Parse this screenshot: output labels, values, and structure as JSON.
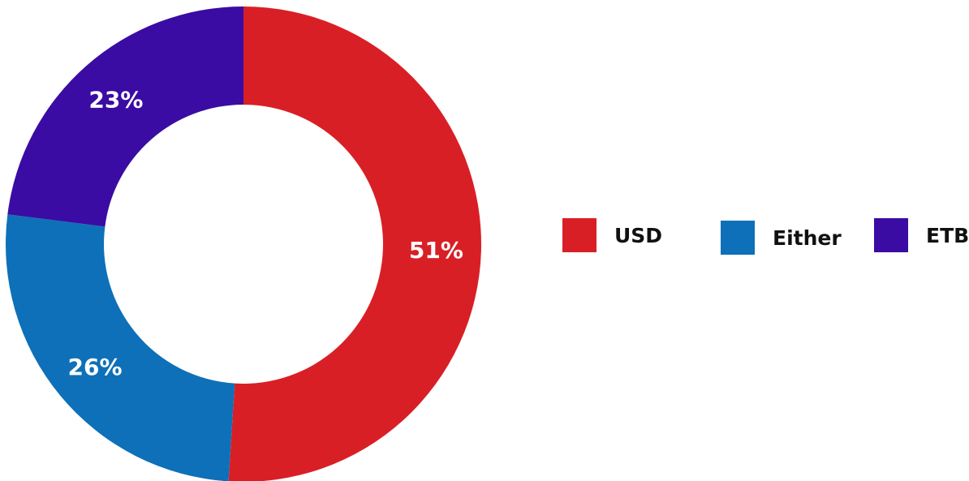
{
  "chart_data": {
    "type": "pie",
    "style": "donut",
    "slices": [
      {
        "label": "USD",
        "value": 51,
        "value_label": "51%",
        "color": "#D91F26"
      },
      {
        "label": "Either",
        "value": 26,
        "value_label": "26%",
        "color": "#0E70B8"
      },
      {
        "label": "ETB",
        "value": 23,
        "value_label": "23%",
        "color": "#3A0CA3"
      }
    ],
    "start_angle_deg": 0,
    "direction": "clockwise-from-top",
    "legend_position": "right"
  }
}
